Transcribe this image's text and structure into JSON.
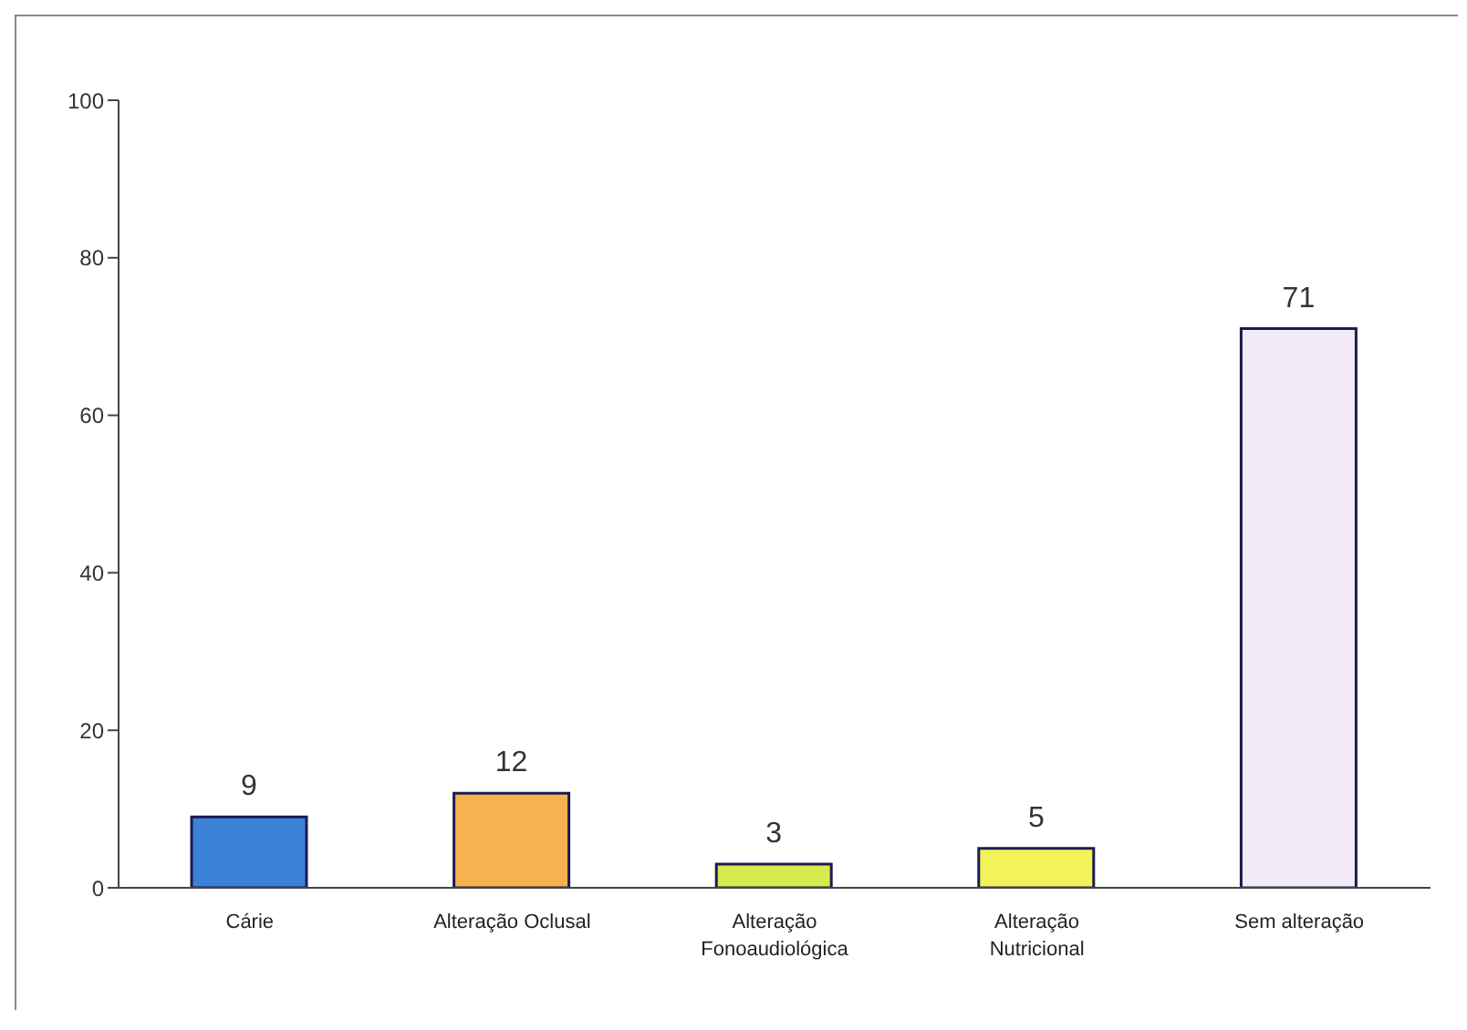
{
  "chart_data": {
    "type": "bar",
    "categories": [
      "Cárie",
      "Alteração Oclusal",
      "Alteração Fonoaudiológica",
      "Alteração Nutricional",
      "Sem alteração"
    ],
    "values": [
      9,
      12,
      3,
      5,
      71
    ],
    "colors": [
      "#3b82d8",
      "#f5b24e",
      "#d6ea4c",
      "#f2f25a",
      "#f3ecf6"
    ],
    "ylim": [
      0,
      100
    ],
    "yticks": [
      0,
      20,
      40,
      60,
      80,
      100
    ],
    "grid": false,
    "data_labels": true
  }
}
